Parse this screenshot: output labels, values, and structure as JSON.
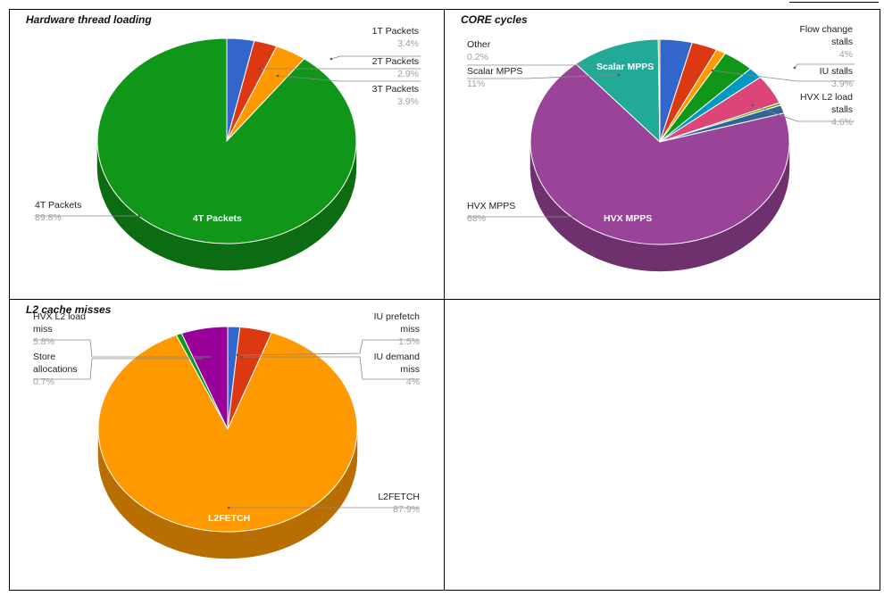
{
  "chart_data": [
    {
      "type": "pie",
      "title": "Hardware thread loading",
      "slices": [
        {
          "label": "1T Packets",
          "value": 3.4,
          "pct": "3.4%",
          "color": "#3366cc"
        },
        {
          "label": "2T Packets",
          "value": 2.9,
          "pct": "2.9%",
          "color": "#dc3912"
        },
        {
          "label": "3T Packets",
          "value": 3.9,
          "pct": "3.9%",
          "color": "#ff9900"
        },
        {
          "label": "4T Packets",
          "value": 89.8,
          "pct": "89.8%",
          "color": "#109618"
        }
      ],
      "inner_labels": [
        "4T Packets"
      ]
    },
    {
      "type": "pie",
      "title": "CORE cycles",
      "slices": [
        {
          "label": "Flow change stalls",
          "value": 4,
          "pct": "4%",
          "color": "#3366cc"
        },
        {
          "label": "",
          "value": 3.2,
          "pct": "",
          "color": "#dc3912"
        },
        {
          "label": "",
          "value": 1.2,
          "pct": "",
          "color": "#ff9900"
        },
        {
          "label": "IU stalls",
          "value": 3.9,
          "pct": "3.9%",
          "color": "#109618"
        },
        {
          "label": "",
          "value": 1.8,
          "pct": "",
          "color": "#0099c6"
        },
        {
          "label": "HVX L2 load stalls",
          "value": 4.6,
          "pct": "4.6%",
          "color": "#dd4477"
        },
        {
          "label": "",
          "value": 0.4,
          "pct": "",
          "color": "#66aa00"
        },
        {
          "label": "",
          "value": 1.3,
          "pct": "",
          "color": "#316395"
        },
        {
          "label": "HVX MPPS",
          "value": 68,
          "pct": "68%",
          "color": "#994499"
        },
        {
          "label": "Scalar MPPS",
          "value": 11,
          "pct": "11%",
          "color": "#22aa99"
        },
        {
          "label": "Other",
          "value": 0.2,
          "pct": "0.2%",
          "color": "#aaaa11"
        }
      ],
      "inner_labels": [
        "Scalar MPPS",
        "HVX MPPS"
      ]
    },
    {
      "type": "pie",
      "title": "L2 cache misses",
      "slices": [
        {
          "label": "IU prefetch miss",
          "value": 1.5,
          "pct": "1.5%",
          "color": "#3366cc"
        },
        {
          "label": "IU demand miss",
          "value": 4,
          "pct": "4%",
          "color": "#dc3912"
        },
        {
          "label": "L2FETCH",
          "value": 87.9,
          "pct": "87.9%",
          "color": "#ff9900"
        },
        {
          "label": "Store allocations",
          "value": 0.7,
          "pct": "0.7%",
          "color": "#109618"
        },
        {
          "label": "HVX L2 load miss",
          "value": 5.8,
          "pct": "5.8%",
          "color": "#990099"
        }
      ],
      "inner_labels": [
        "L2FETCH"
      ]
    }
  ]
}
